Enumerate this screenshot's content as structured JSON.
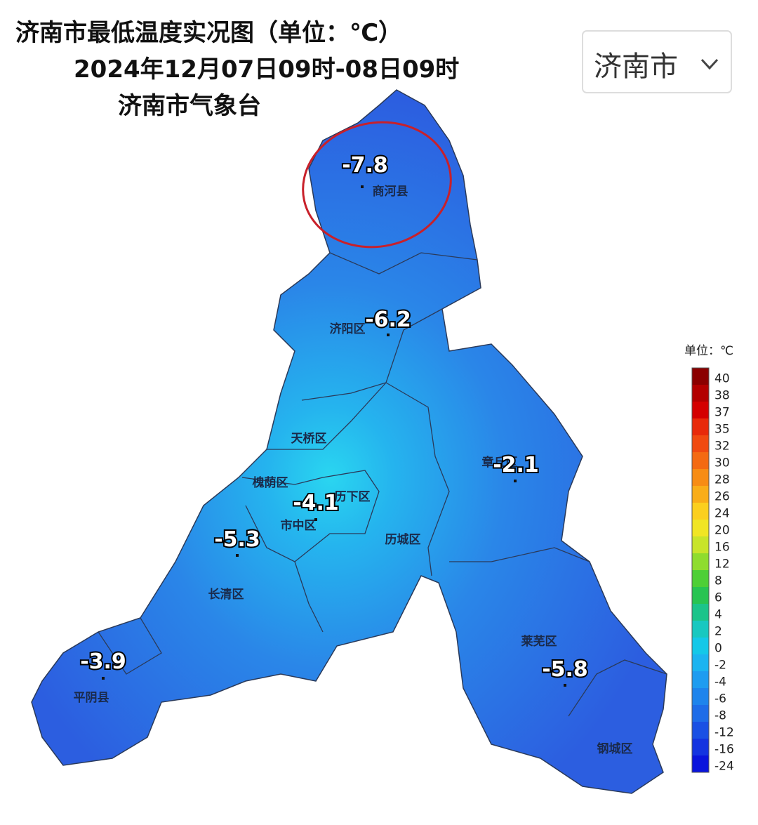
{
  "header": {
    "title": "济南市最低温度实况图（单位：℃）",
    "period": "2024年12月07日09时-08日09时",
    "source": "济南市气象台"
  },
  "selector": {
    "label": "济南市"
  },
  "districts": [
    {
      "name": "商河县"
    },
    {
      "name": "济阳区"
    },
    {
      "name": "天桥区"
    },
    {
      "name": "槐荫区"
    },
    {
      "name": "市中区"
    },
    {
      "name": "历下区"
    },
    {
      "name": "历城区"
    },
    {
      "name": "章丘区"
    },
    {
      "name": "长清区"
    },
    {
      "name": "平阴县"
    },
    {
      "name": "莱芜区"
    },
    {
      "name": "钢城区"
    }
  ],
  "stations": [
    {
      "value": -7.8
    },
    {
      "value": -6.2
    },
    {
      "value": -2.1
    },
    {
      "value": -4.1
    },
    {
      "value": -5.3
    },
    {
      "value": -3.9
    },
    {
      "value": -5.8
    }
  ],
  "legend": {
    "unit": "单位：℃",
    "ticks": [
      40,
      38,
      37,
      35,
      32,
      30,
      28,
      26,
      24,
      20,
      16,
      12,
      8,
      6,
      4,
      2,
      0,
      -2,
      -4,
      -6,
      -8,
      -12,
      -16,
      -24
    ],
    "colors": [
      "#8b0000",
      "#b30000",
      "#d40000",
      "#e82a0a",
      "#f04a10",
      "#f46a12",
      "#f78c14",
      "#f9ad18",
      "#fbcf1e",
      "#f0e524",
      "#c8e42a",
      "#8fdc2e",
      "#4ecf36",
      "#28c452",
      "#1cc48a",
      "#18c8c0",
      "#14c8e8",
      "#1cb4f0",
      "#1e9cf0",
      "#1e84ec",
      "#1e6ce8",
      "#1a50e4",
      "#1434e0",
      "#0a14dc"
    ]
  }
}
